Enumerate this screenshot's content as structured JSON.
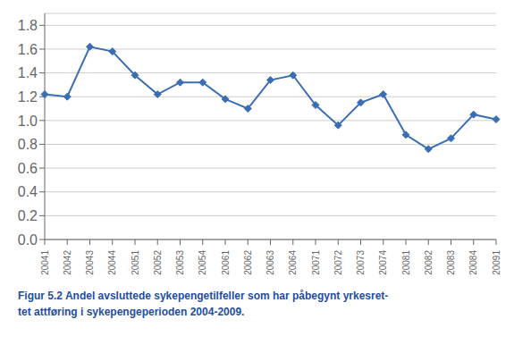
{
  "chart_data": {
    "type": "line",
    "categories": [
      "20041",
      "20042",
      "20043",
      "20044",
      "20051",
      "20052",
      "20053",
      "20054",
      "20061",
      "20062",
      "20063",
      "20064",
      "20071",
      "20072",
      "20073",
      "20074",
      "20081",
      "20082",
      "20083",
      "20084",
      "20091"
    ],
    "values": [
      1.22,
      1.2,
      1.62,
      1.58,
      1.38,
      1.22,
      1.32,
      1.32,
      1.18,
      1.1,
      1.34,
      1.38,
      1.13,
      0.96,
      1.15,
      1.22,
      0.88,
      0.76,
      0.85,
      1.05,
      1.01
    ],
    "color": "#3B6DB3",
    "marker": "diamond",
    "ylim": [
      0.0,
      1.9
    ],
    "yticks": [
      {
        "value": 0.0,
        "label": "0.0"
      },
      0.2,
      0.4,
      0.6,
      0.8,
      {
        "value": 1.0,
        "label": "1.0"
      },
      1.2,
      1.4,
      1.6,
      1.8
    ],
    "grid": true,
    "annotations": [
      {
        "text": "Figur 5.2 Andel avsluttede sykepengetilfeller som har påbegynt yrkesret-",
        "color": "#1F4E9E"
      },
      {
        "text": "tet attføring i sykepengeperioden 2004-2009.",
        "color": "#1F4E9E"
      }
    ]
  }
}
